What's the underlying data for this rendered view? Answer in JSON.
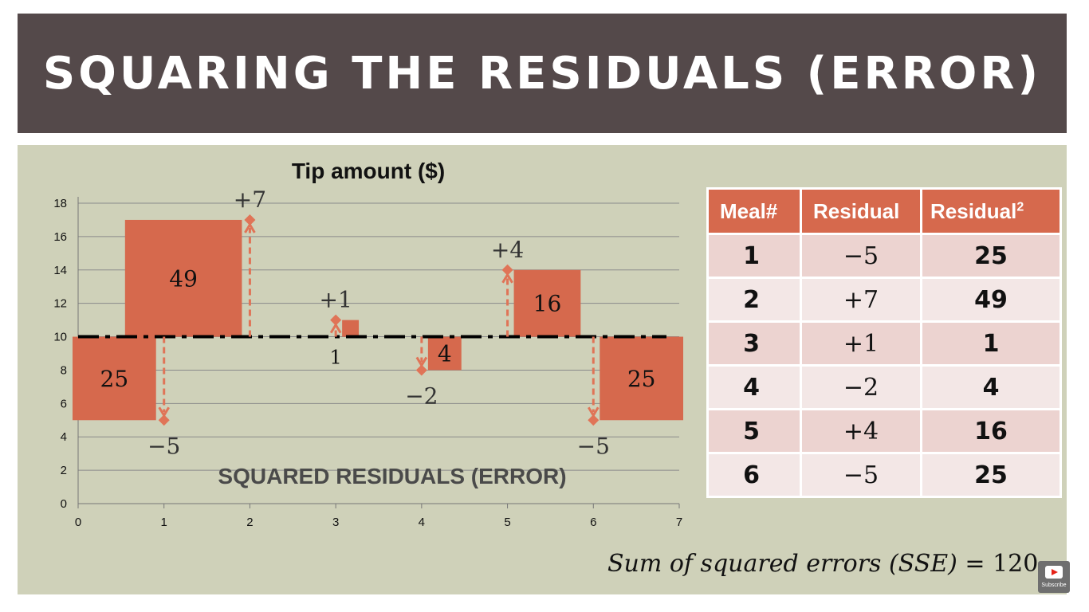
{
  "slide": {
    "title": "SQUARING THE RESIDUALS (ERROR)"
  },
  "table": {
    "headers": {
      "meal": "Meal#",
      "residual": "Residual",
      "residual_sq_base": "Residual",
      "residual_sq_exp": "2"
    },
    "rows": [
      {
        "meal": "1",
        "residual": "−5",
        "squared": "25"
      },
      {
        "meal": "2",
        "residual": "+7",
        "squared": "49"
      },
      {
        "meal": "3",
        "residual": "+1",
        "squared": "1"
      },
      {
        "meal": "4",
        "residual": "−2",
        "squared": "4"
      },
      {
        "meal": "5",
        "residual": "+4",
        "squared": "16"
      },
      {
        "meal": "6",
        "residual": "−5",
        "squared": "25"
      }
    ],
    "header_color": "#d6694d"
  },
  "sse": {
    "label": "Sum of squared errors (SSE) = ",
    "value": "120"
  },
  "badge": {
    "label": "Subscribe",
    "icon": "youtube-play-icon"
  },
  "chart_data": {
    "type": "scatter",
    "title": "Tip amount ($)",
    "annotation": "SQUARED RESIDUALS (ERROR)",
    "xlim": [
      0,
      7
    ],
    "ylim": [
      0,
      18
    ],
    "xticks": [
      "0",
      "1",
      "2",
      "3",
      "4",
      "5",
      "6",
      "7"
    ],
    "yticks": [
      "0",
      "2",
      "4",
      "6",
      "8",
      "10",
      "12",
      "14",
      "16",
      "18"
    ],
    "grid": true,
    "mean_line": 10,
    "points": [
      {
        "x": 1,
        "y": 5,
        "residual": -5,
        "label": "−5",
        "square_label": "25",
        "square_side": "left"
      },
      {
        "x": 2,
        "y": 17,
        "residual": 7,
        "label": "+7",
        "square_label": "49",
        "square_side": "left"
      },
      {
        "x": 3,
        "y": 11,
        "residual": 1,
        "label": "+1",
        "square_label": "1",
        "square_side": "right"
      },
      {
        "x": 4,
        "y": 8,
        "residual": -2,
        "label": "−2",
        "square_label": "4",
        "square_side": "right"
      },
      {
        "x": 5,
        "y": 14,
        "residual": 4,
        "label": "+4",
        "square_label": "16",
        "square_side": "right"
      },
      {
        "x": 6,
        "y": 5,
        "residual": -5,
        "label": "−5",
        "square_label": "25",
        "square_side": "right"
      }
    ],
    "colors": {
      "square": "#d6694d",
      "marker": "#e07457",
      "mean_line": "#000000",
      "grid": "#8a8a8a"
    }
  }
}
